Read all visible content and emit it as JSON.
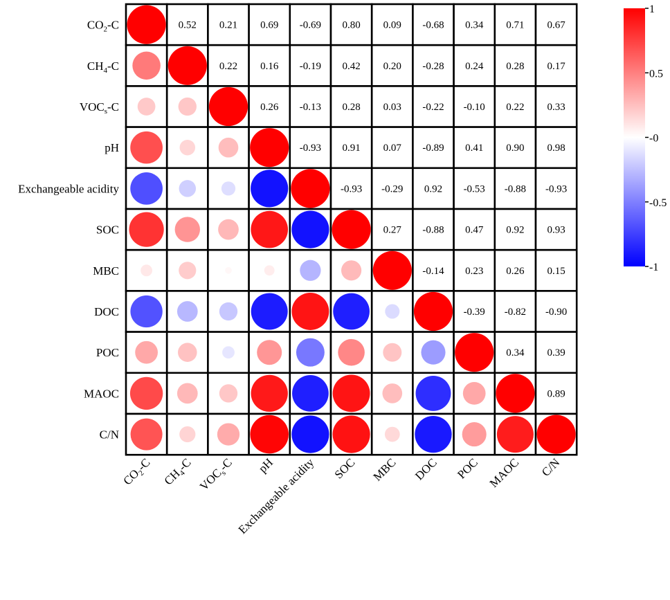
{
  "chart_data": {
    "type": "heatmap",
    "variables": [
      "CO2-C",
      "CH4-C",
      "VOCs-C",
      "pH",
      "Exchangeable acidity",
      "SOC",
      "MBC",
      "DOC",
      "POC",
      "MAOC",
      "C/N"
    ],
    "labels": [
      {
        "main": "CO",
        "sub": "2",
        "tail": "-C"
      },
      {
        "main": "CH",
        "sub": "4",
        "tail": "-C"
      },
      {
        "main": "VOC",
        "sub": "s",
        "tail": "-C"
      },
      {
        "main": "pH",
        "sub": "",
        "tail": ""
      },
      {
        "main": "Exchangeable acidity",
        "sub": "",
        "tail": ""
      },
      {
        "main": "SOC",
        "sub": "",
        "tail": ""
      },
      {
        "main": "MBC",
        "sub": "",
        "tail": ""
      },
      {
        "main": "DOC",
        "sub": "",
        "tail": ""
      },
      {
        "main": "POC",
        "sub": "",
        "tail": ""
      },
      {
        "main": "MAOC",
        "sub": "",
        "tail": ""
      },
      {
        "main": "C/N",
        "sub": "",
        "tail": ""
      }
    ],
    "matrix": [
      [
        1.0,
        0.52,
        0.21,
        0.69,
        -0.69,
        0.8,
        0.09,
        -0.68,
        0.34,
        0.71,
        0.67
      ],
      [
        0.52,
        1.0,
        0.22,
        0.16,
        -0.19,
        0.42,
        0.2,
        -0.28,
        0.24,
        0.28,
        0.17
      ],
      [
        0.21,
        0.22,
        1.0,
        0.26,
        -0.13,
        0.28,
        0.03,
        -0.22,
        -0.1,
        0.22,
        0.33
      ],
      [
        0.69,
        0.16,
        0.26,
        1.0,
        -0.93,
        0.91,
        0.07,
        -0.89,
        0.41,
        0.9,
        0.98
      ],
      [
        -0.69,
        -0.19,
        -0.13,
        -0.93,
        1.0,
        -0.93,
        -0.29,
        0.92,
        -0.53,
        -0.88,
        -0.93
      ],
      [
        0.8,
        0.42,
        0.28,
        0.91,
        -0.93,
        1.0,
        0.27,
        -0.88,
        0.47,
        0.92,
        0.93
      ],
      [
        0.09,
        0.2,
        0.03,
        0.07,
        -0.29,
        0.27,
        1.0,
        -0.14,
        0.23,
        0.26,
        0.15
      ],
      [
        -0.68,
        -0.28,
        -0.22,
        -0.89,
        0.92,
        -0.88,
        -0.14,
        1.0,
        -0.39,
        -0.82,
        -0.9
      ],
      [
        0.34,
        0.24,
        -0.1,
        0.41,
        -0.53,
        0.47,
        0.23,
        -0.39,
        1.0,
        0.34,
        0.39
      ],
      [
        0.71,
        0.28,
        0.22,
        0.9,
        -0.88,
        0.92,
        0.26,
        -0.82,
        0.34,
        1.0,
        0.89
      ],
      [
        0.67,
        0.17,
        0.33,
        0.98,
        -0.93,
        0.93,
        0.15,
        -0.9,
        0.39,
        0.89,
        1.0
      ]
    ],
    "lower_triangle": "circles",
    "upper_triangle": "numbers",
    "colorbar": {
      "min": -1,
      "max": 1,
      "ticks": [
        "1",
        "0.5",
        "-0",
        "-0.5",
        "-1"
      ],
      "colors": {
        "negative": "#0000ff",
        "zero": "#ffffff",
        "positive": "#ff0000"
      }
    }
  }
}
